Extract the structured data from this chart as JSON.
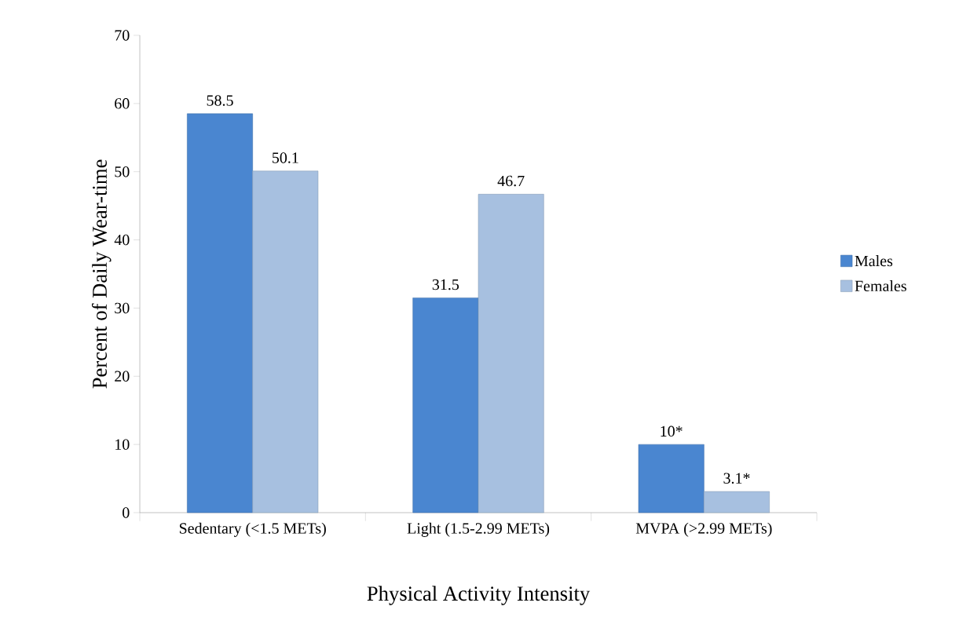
{
  "chart_data": {
    "type": "bar",
    "xlabel": "Physical Activity Intensity",
    "ylabel": "Percent of Daily Wear-time",
    "categories": [
      "Sedentary (<1.5 METs)",
      "Light (1.5-2.99 METs)",
      "MVPA (>2.99 METs)"
    ],
    "series": [
      {
        "name": "Males",
        "color": "#4a86d0",
        "values": [
          58.5,
          31.5,
          10
        ],
        "value_labels": [
          "58.5",
          "31.5",
          "10*"
        ]
      },
      {
        "name": "Females",
        "color": "#a7c0e0",
        "values": [
          50.1,
          46.7,
          3.1
        ],
        "value_labels": [
          "50.1",
          "46.7",
          "3.1*"
        ]
      }
    ],
    "ylim": [
      0,
      70
    ],
    "yticks": [
      0,
      10,
      20,
      30,
      40,
      50,
      60,
      70
    ],
    "grid": false,
    "legend": "right"
  }
}
